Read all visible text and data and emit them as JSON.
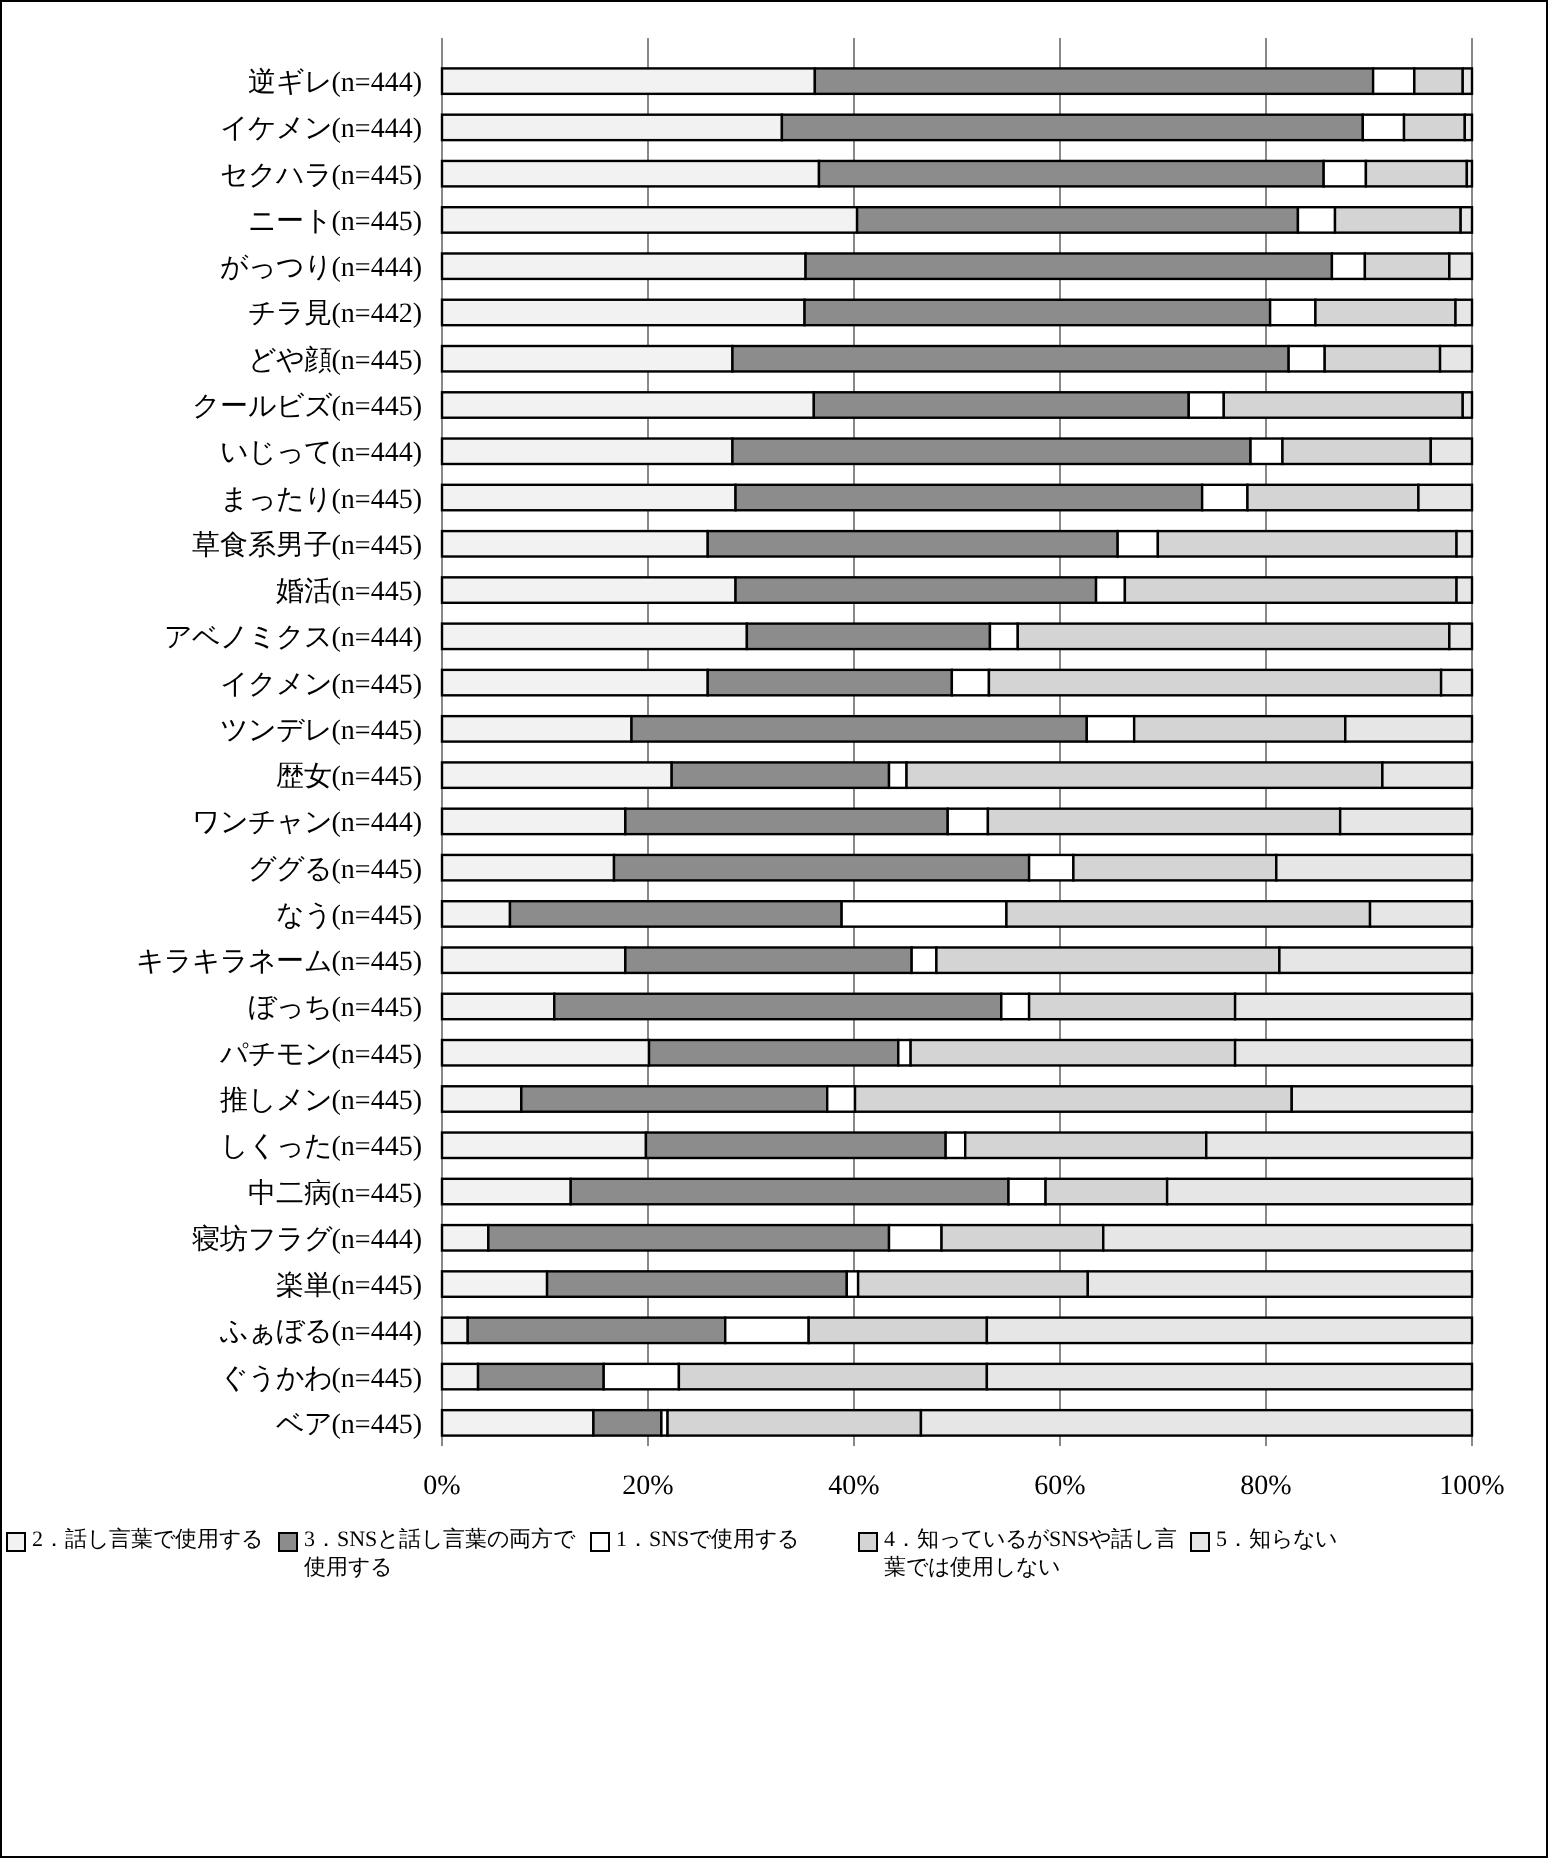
{
  "chart_data": {
    "type": "bar",
    "orientation": "horizontal",
    "stacked": true,
    "categories": [
      "逆ギレ(n=444)",
      "イケメン(n=444)",
      "セクハラ(n=445)",
      "ニート(n=445)",
      "がっつり(n=444)",
      "チラ見(n=442)",
      "どや顔(n=445)",
      "クールビズ(n=445)",
      "いじって(n=444)",
      "まったり(n=445)",
      "草食系男子(n=445)",
      "婚活(n=445)",
      "アベノミクス(n=444)",
      "イクメン(n=445)",
      "ツンデレ(n=445)",
      "歴女(n=445)",
      "ワンチャン(n=444)",
      "ググる(n=445)",
      "なう(n=445)",
      "キラキラネーム(n=445)",
      "ぼっち(n=445)",
      "パチモン(n=445)",
      "推しメン(n=445)",
      "しくった(n=445)",
      "中二病(n=445)",
      "寝坊フラグ(n=444)",
      "楽単(n=445)",
      "ふぁぼる(n=444)",
      "ぐうかわ(n=445)",
      "ベア(n=445)"
    ],
    "series": [
      {
        "name": "2．話し言葉で使用する",
        "color": "#f2f2f2",
        "values": [
          36.2,
          33.0,
          36.6,
          40.3,
          35.3,
          35.2,
          28.2,
          36.1,
          28.2,
          28.5,
          25.8,
          28.5,
          29.6,
          25.8,
          18.4,
          22.3,
          17.8,
          16.7,
          6.6,
          17.8,
          10.9,
          20.1,
          7.7,
          19.8,
          12.5,
          4.5,
          10.2,
          2.5,
          3.5,
          14.7
        ]
      },
      {
        "name": "3．SNSと話し言葉の両方で使用する",
        "color": "#8c8c8c",
        "values": [
          54.2,
          56.4,
          49.0,
          42.8,
          51.1,
          45.2,
          54.0,
          36.4,
          50.3,
          45.3,
          39.8,
          35.0,
          23.6,
          23.7,
          44.2,
          21.1,
          31.3,
          40.3,
          32.2,
          27.8,
          43.4,
          24.2,
          29.7,
          29.1,
          42.5,
          38.9,
          29.1,
          25.0,
          12.2,
          6.6
        ]
      },
      {
        "name": "1．SNSで使用する",
        "color": "#ffffff",
        "values": [
          4.0,
          4.0,
          4.1,
          3.6,
          3.2,
          4.4,
          3.5,
          3.4,
          3.1,
          4.4,
          3.9,
          2.8,
          2.7,
          3.6,
          4.6,
          1.7,
          3.9,
          4.3,
          16.0,
          2.4,
          2.7,
          1.2,
          2.7,
          1.9,
          3.6,
          5.1,
          1.1,
          8.1,
          7.3,
          0.6
        ]
      },
      {
        "name": "4．知っているがSNSや話し言葉では使用しない",
        "color": "#d4d4d4",
        "values": [
          4.7,
          5.9,
          9.8,
          12.2,
          8.2,
          13.6,
          11.2,
          23.2,
          14.4,
          16.6,
          29.0,
          32.2,
          41.9,
          43.9,
          20.5,
          46.2,
          34.2,
          19.7,
          35.3,
          33.3,
          20.0,
          31.5,
          42.4,
          23.4,
          11.8,
          15.7,
          22.3,
          17.3,
          29.9,
          24.6
        ]
      },
      {
        "name": "5．知らない",
        "color": "#e6e6e6",
        "values": [
          0.9,
          0.7,
          0.5,
          1.1,
          2.2,
          1.6,
          3.1,
          0.9,
          4.0,
          5.2,
          1.5,
          1.5,
          2.2,
          3.0,
          12.3,
          8.7,
          12.8,
          19.0,
          9.9,
          18.7,
          23.0,
          23.0,
          17.5,
          25.8,
          29.6,
          35.8,
          37.3,
          47.1,
          47.1,
          53.5
        ]
      }
    ],
    "xlim": [
      0,
      100
    ],
    "xticks": [
      {
        "value": 0,
        "label": "0%"
      },
      {
        "value": 20,
        "label": "20%"
      },
      {
        "value": 40,
        "label": "40%"
      },
      {
        "value": 60,
        "label": "60%"
      },
      {
        "value": 80,
        "label": "80%"
      },
      {
        "value": 100,
        "label": "100%"
      }
    ],
    "grid": "x",
    "legend": "bottom"
  }
}
